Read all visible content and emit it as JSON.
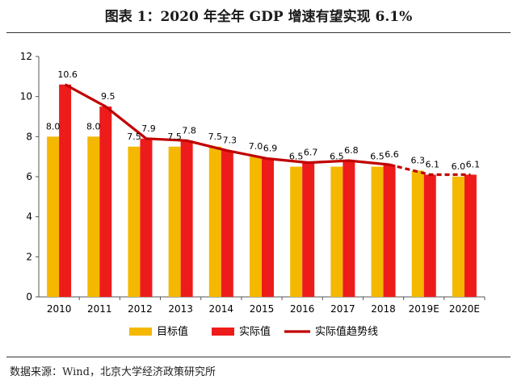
{
  "figure": {
    "title": "图表 1：2020 年全年 GDP 增速有望实现 6.1%",
    "source": "数据来源：Wind，北京大学经济政策研究所"
  },
  "colors": {
    "target": "#F5B800",
    "actual": "#EE1B1B",
    "trend": "#C00000"
  },
  "chart_data": {
    "type": "bar",
    "categories": [
      "2010",
      "2011",
      "2012",
      "2013",
      "2014",
      "2015",
      "2016",
      "2017",
      "2018",
      "2019E",
      "2020E"
    ],
    "series": [
      {
        "name": "目标值",
        "type": "bar",
        "values": [
          8.0,
          8.0,
          7.5,
          7.5,
          7.5,
          7.0,
          6.5,
          6.5,
          6.5,
          6.3,
          6.0
        ],
        "labels": [
          "8.0",
          "8.0",
          "7.5",
          "7.5",
          "7.5",
          "7.0",
          "6.5",
          "6.5",
          "6.5",
          "6.3",
          "6.0"
        ]
      },
      {
        "name": "实际值",
        "type": "bar",
        "values": [
          10.6,
          9.5,
          7.9,
          7.8,
          7.3,
          6.9,
          6.7,
          6.8,
          6.6,
          6.1,
          6.1
        ],
        "labels": [
          "10.6",
          "9.5",
          "7.9",
          "7.8",
          "7.3",
          "6.9",
          "6.7",
          "6.8",
          "6.6",
          "6.1",
          "6.1"
        ]
      },
      {
        "name": "实际值趋势线",
        "type": "line",
        "values": [
          10.6,
          9.5,
          7.9,
          7.8,
          7.3,
          6.9,
          6.7,
          6.8,
          6.6,
          6.1,
          6.1
        ],
        "dashed_from": "2018"
      }
    ],
    "ylim": [
      0,
      12
    ],
    "yticks": [
      "0",
      "2",
      "4",
      "6",
      "8",
      "10",
      "12"
    ],
    "xlabel": "",
    "ylabel": "",
    "grid": false,
    "legend_position": "bottom"
  }
}
